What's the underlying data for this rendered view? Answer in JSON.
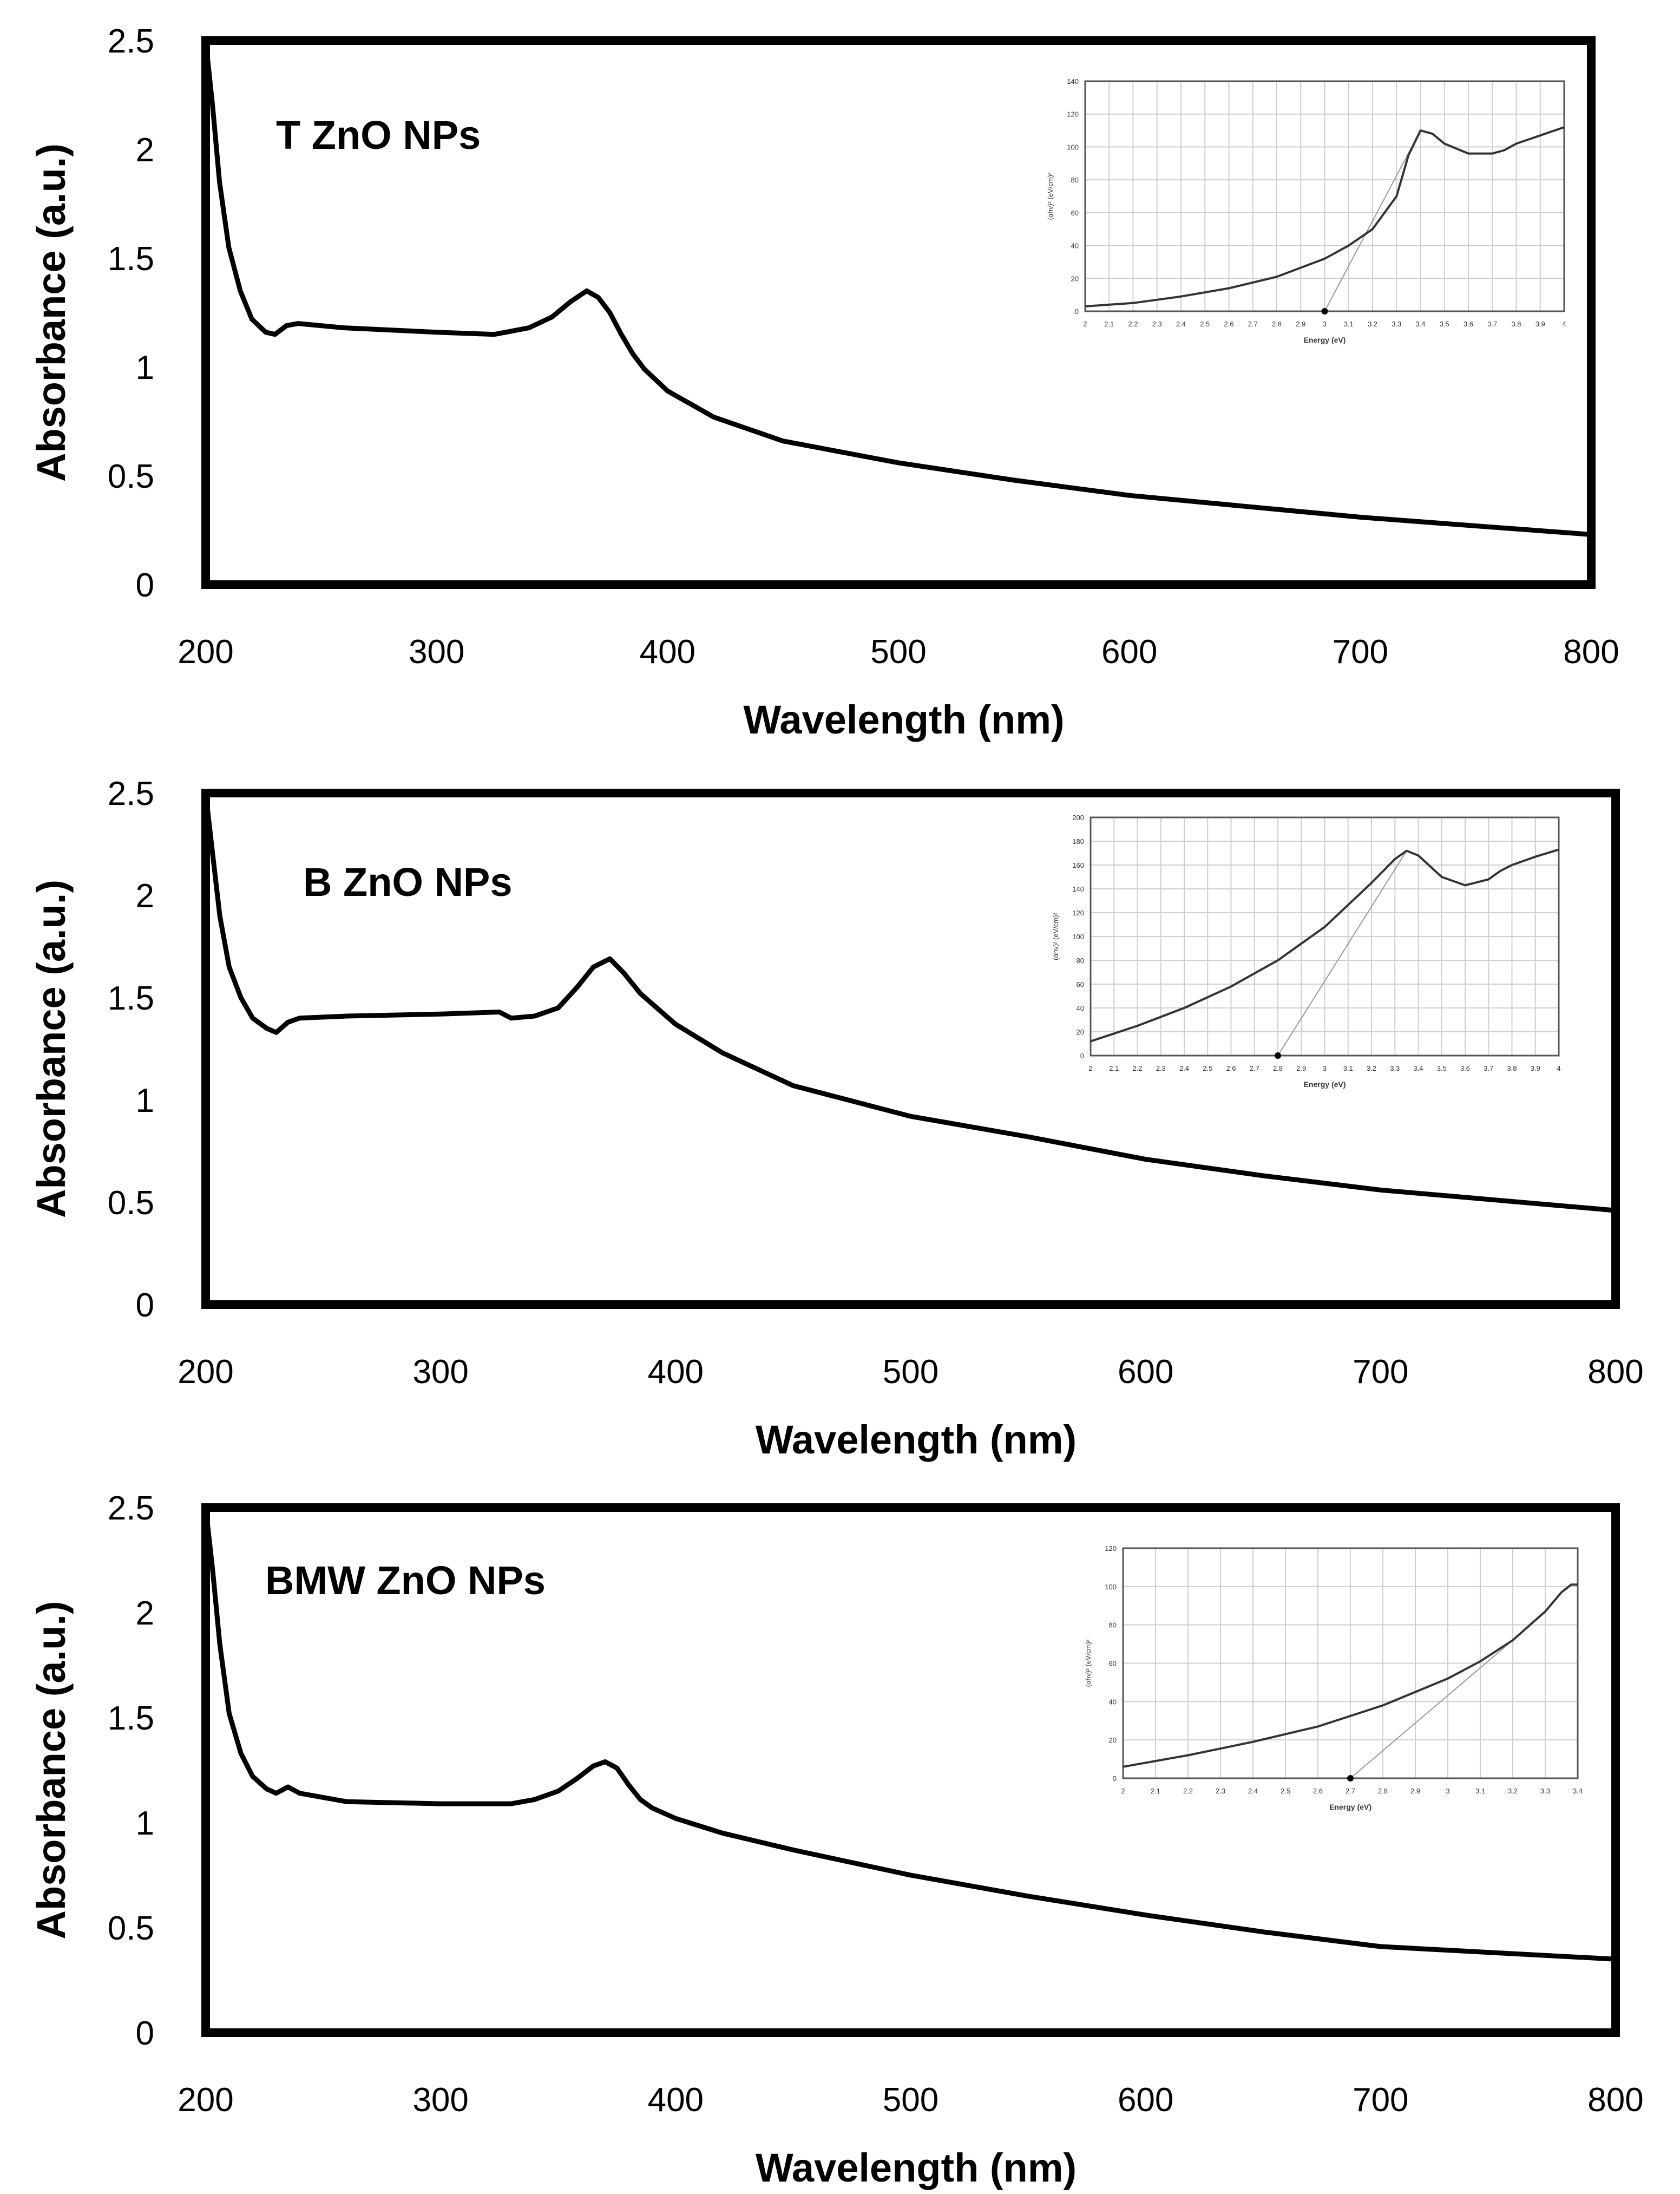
{
  "chart_data": [
    {
      "type": "line",
      "label": "T ZnO NPs",
      "xlabel": "Wavelength (nm)",
      "ylabel": "Absorbance (a.u.)",
      "xlim": [
        200,
        800
      ],
      "ylim": [
        0,
        2.5
      ],
      "xticks": [
        "200",
        "300",
        "400",
        "500",
        "600",
        "700",
        "800"
      ],
      "yticks": [
        "0",
        "0.5",
        "1",
        "1.5",
        "2",
        "2.5"
      ],
      "x": [
        200,
        203,
        206,
        210,
        215,
        220,
        226,
        230,
        235,
        240,
        260,
        300,
        325,
        330,
        340,
        350,
        358,
        365,
        370,
        375,
        380,
        385,
        390,
        400,
        420,
        450,
        500,
        550,
        600,
        650,
        700,
        750,
        800
      ],
      "y": [
        2.5,
        2.2,
        1.85,
        1.55,
        1.35,
        1.22,
        1.16,
        1.15,
        1.19,
        1.2,
        1.18,
        1.16,
        1.15,
        1.16,
        1.18,
        1.23,
        1.3,
        1.35,
        1.32,
        1.25,
        1.15,
        1.06,
        0.99,
        0.89,
        0.77,
        0.66,
        0.56,
        0.48,
        0.41,
        0.36,
        0.31,
        0.27,
        0.23
      ],
      "inset": {
        "xlabel": "Energy (eV)",
        "ylabel": "(αhν)² (eV/cm)²",
        "xlim": [
          2,
          4
        ],
        "ylim": [
          0,
          140
        ],
        "xticks": [
          "2",
          "2.1",
          "2.2",
          "2.3",
          "2.4",
          "2.5",
          "2.6",
          "2.7",
          "2.8",
          "2.9",
          "3",
          "3.1",
          "3.2",
          "3.3",
          "3.4",
          "3.5",
          "3.6",
          "3.7",
          "3.8",
          "3.9",
          "4"
        ],
        "yticks": [
          "0",
          "20",
          "40",
          "60",
          "80",
          "100",
          "120",
          "140"
        ],
        "x": [
          2.0,
          2.2,
          2.4,
          2.6,
          2.8,
          3.0,
          3.1,
          3.2,
          3.3,
          3.35,
          3.4,
          3.45,
          3.5,
          3.6,
          3.7,
          3.75,
          3.8,
          3.9,
          4.0
        ],
        "y": [
          3,
          5,
          9,
          14,
          21,
          32,
          40,
          50,
          70,
          95,
          110,
          108,
          102,
          96,
          96,
          98,
          102,
          107,
          112
        ],
        "fit_x": [
          3.0,
          3.4
        ],
        "fit_y": [
          0,
          110
        ],
        "band_gap_ev": 3.0
      }
    },
    {
      "type": "line",
      "label": "B ZnO NPs",
      "xlabel": "Wavelength (nm)",
      "ylabel": "Absorbance (a.u.)",
      "xlim": [
        200,
        800
      ],
      "ylim": [
        0,
        2.5
      ],
      "xticks": [
        "200",
        "300",
        "400",
        "500",
        "600",
        "700",
        "800"
      ],
      "yticks": [
        "0",
        "0.5",
        "1",
        "1.5",
        "2",
        "2.5"
      ],
      "x": [
        200,
        203,
        206,
        210,
        215,
        220,
        226,
        230,
        235,
        240,
        260,
        300,
        325,
        330,
        340,
        350,
        358,
        365,
        372,
        378,
        385,
        390,
        400,
        420,
        450,
        500,
        550,
        600,
        650,
        700,
        750,
        800
      ],
      "y": [
        2.5,
        2.2,
        1.9,
        1.65,
        1.5,
        1.4,
        1.35,
        1.33,
        1.38,
        1.4,
        1.41,
        1.42,
        1.43,
        1.4,
        1.41,
        1.45,
        1.55,
        1.65,
        1.69,
        1.62,
        1.52,
        1.47,
        1.37,
        1.23,
        1.07,
        0.92,
        0.82,
        0.71,
        0.63,
        0.56,
        0.51,
        0.46
      ],
      "inset": {
        "xlabel": "Energy (eV)",
        "ylabel": "(αhν)² (eV/cm)²",
        "xlim": [
          2,
          4
        ],
        "ylim": [
          0,
          200
        ],
        "xticks": [
          "2",
          "2.1",
          "2.2",
          "2.3",
          "2.4",
          "2.5",
          "2.6",
          "2.7",
          "2.8",
          "2.9",
          "3",
          "3.1",
          "3.2",
          "3.3",
          "3.4",
          "3.5",
          "3.6",
          "3.7",
          "3.8",
          "3.9",
          "4"
        ],
        "yticks": [
          "0",
          "20",
          "40",
          "60",
          "80",
          "100",
          "120",
          "140",
          "160",
          "180",
          "200"
        ],
        "x": [
          2.0,
          2.2,
          2.4,
          2.6,
          2.8,
          3.0,
          3.2,
          3.3,
          3.35,
          3.4,
          3.5,
          3.6,
          3.7,
          3.75,
          3.8,
          3.9,
          4.0
        ],
        "y": [
          12,
          25,
          40,
          58,
          80,
          108,
          145,
          165,
          172,
          168,
          150,
          143,
          148,
          155,
          160,
          167,
          173
        ],
        "fit_x": [
          2.8,
          3.35
        ],
        "fit_y": [
          0,
          172
        ],
        "band_gap_ev": 2.8
      }
    },
    {
      "type": "line",
      "label": "BMW ZnO NPs",
      "xlabel": "Wavelength (nm)",
      "ylabel": "Absorbance (a.u.)",
      "xlim": [
        200,
        800
      ],
      "ylim": [
        0,
        2.5
      ],
      "xticks": [
        "200",
        "300",
        "400",
        "500",
        "600",
        "700",
        "800"
      ],
      "yticks": [
        "0",
        "0.5",
        "1",
        "1.5",
        "2",
        "2.5"
      ],
      "x": [
        200,
        203,
        206,
        210,
        215,
        220,
        226,
        230,
        235,
        240,
        260,
        300,
        330,
        340,
        350,
        358,
        365,
        370,
        375,
        380,
        385,
        390,
        400,
        420,
        450,
        500,
        550,
        600,
        650,
        700,
        750,
        800
      ],
      "y": [
        2.5,
        2.2,
        1.85,
        1.52,
        1.33,
        1.22,
        1.16,
        1.14,
        1.17,
        1.14,
        1.1,
        1.09,
        1.09,
        1.11,
        1.15,
        1.21,
        1.27,
        1.29,
        1.26,
        1.18,
        1.11,
        1.07,
        1.02,
        0.95,
        0.87,
        0.75,
        0.65,
        0.56,
        0.48,
        0.41,
        0.38,
        0.35
      ],
      "inset": {
        "xlabel": "Energy (eV)",
        "ylabel": "(αhν)² (eV/cm)²",
        "xlim": [
          2,
          3.4
        ],
        "ylim": [
          0,
          120
        ],
        "xticks": [
          "2",
          "2.1",
          "2.2",
          "2.3",
          "2.4",
          "2.5",
          "2.6",
          "2.7",
          "2.8",
          "2.9",
          "3",
          "3.1",
          "3.2",
          "3.3",
          "3.4"
        ],
        "yticks": [
          "0",
          "20",
          "40",
          "60",
          "80",
          "100",
          "120"
        ],
        "x": [
          2.0,
          2.2,
          2.4,
          2.6,
          2.8,
          3.0,
          3.1,
          3.2,
          3.3,
          3.35,
          3.38,
          3.4
        ],
        "y": [
          6,
          12,
          19,
          27,
          38,
          52,
          61,
          72,
          87,
          97,
          101,
          101
        ],
        "fit_x": [
          2.7,
          3.2
        ],
        "fit_y": [
          0,
          72
        ],
        "band_gap_ev": 2.7
      }
    }
  ]
}
